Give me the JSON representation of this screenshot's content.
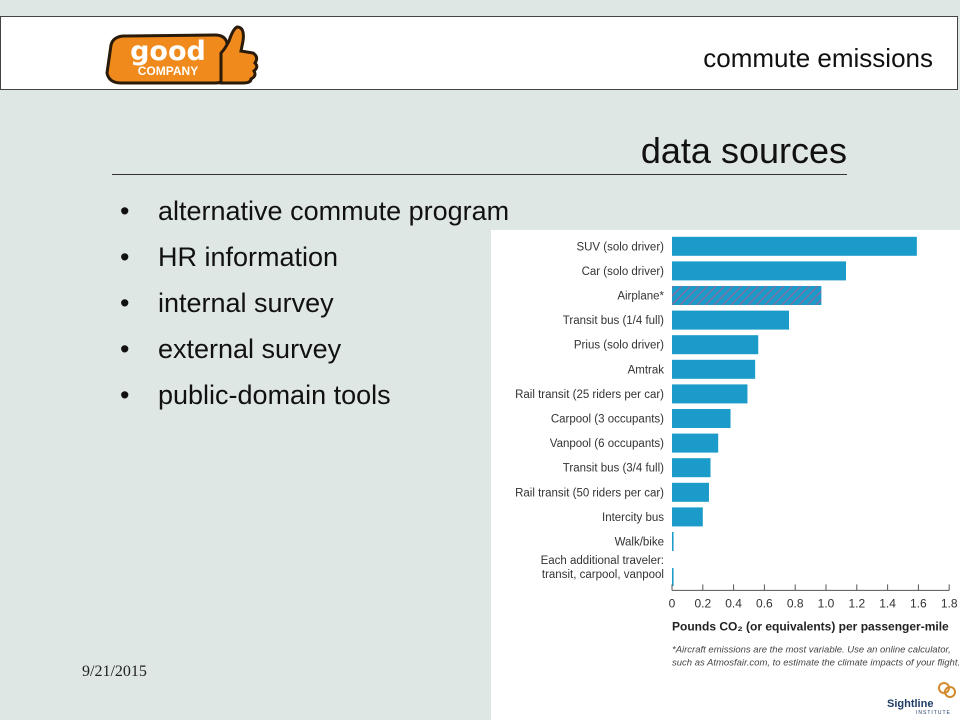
{
  "header": {
    "logo_text_top": "good",
    "logo_text_bottom": "COMPANY",
    "title": "commute emissions"
  },
  "slide": {
    "title": "data sources",
    "bullet_glyph": "•",
    "bullets": [
      "alternative commute program",
      "HR information",
      "internal survey",
      "external survey",
      "public-domain tools"
    ],
    "date": "9/21/2015"
  },
  "chart_data": {
    "type": "bar",
    "orientation": "horizontal",
    "categories": [
      "SUV (solo driver)",
      "Car (solo driver)",
      "Airplane*",
      "Transit bus (1/4 full)",
      "Prius (solo driver)",
      "Amtrak",
      "Rail transit (25 riders per car)",
      "Carpool (3 occupants)",
      "Vanpool (6 occupants)",
      "Transit bus (3/4 full)",
      "Rail transit (50 riders per car)",
      "Intercity bus",
      "Walk/bike",
      "Each additional traveler:|transit, carpool, vanpool"
    ],
    "values": [
      1.59,
      1.13,
      0.97,
      0.76,
      0.56,
      0.54,
      0.49,
      0.38,
      0.3,
      0.25,
      0.24,
      0.2,
      0.01,
      0.01
    ],
    "hatched": [
      false,
      false,
      true,
      false,
      false,
      false,
      false,
      false,
      false,
      false,
      false,
      false,
      false,
      false
    ],
    "xlim": [
      0,
      1.8
    ],
    "xticks": [
      "0",
      "0.2",
      "0.4",
      "0.6",
      "0.8",
      "1.0",
      "1.2",
      "1.4",
      "1.6",
      "1.8"
    ],
    "xlabel": "Pounds CO₂ (or equivalents) per passenger-mile",
    "note_lines": [
      "*Aircraft emissions are the most variable.  Use an online calculator,",
      "such as Atmosfair.com, to estimate the climate impacts of your flight."
    ],
    "source_brand": "Sightline",
    "source_brand_sub": "INSTITUTE",
    "bar_color": "#1b9bc9",
    "hatch_color": "#7a6fa0"
  }
}
